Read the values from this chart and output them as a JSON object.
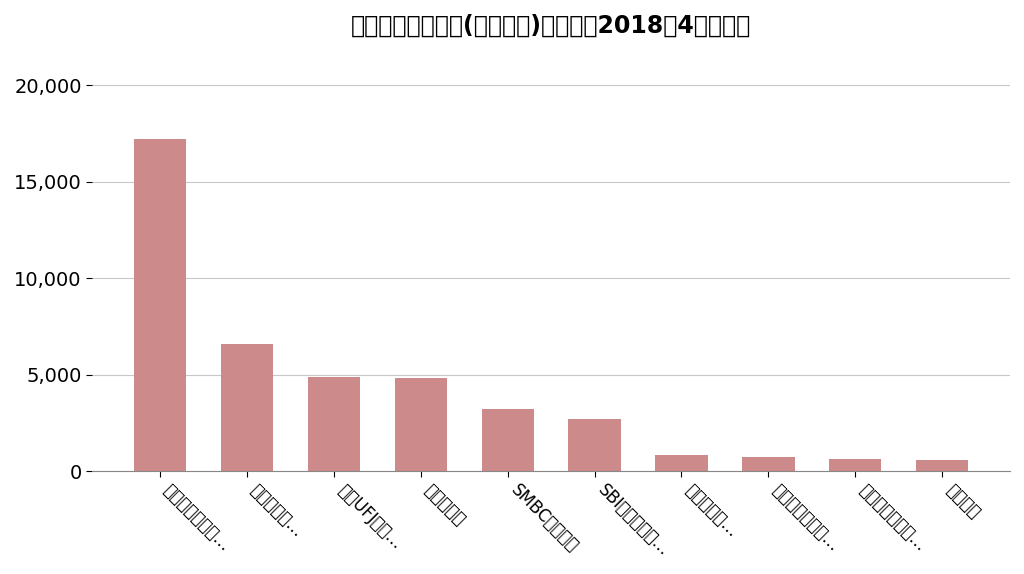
{
  "title": "証券会社の売上高(営業収益)（億円：2018年4月調べ）",
  "categories": [
    "野村ホールディ…",
    "大和証券グ…",
    "三菱UFJ証券…",
    "みずほ証券",
    "SMBC日興証券",
    "SBIホールディ…",
    "岡三証券グ…",
    "東海東京フィナ…",
    "澤田ホールディ…",
    "楽天証券"
  ],
  "values": [
    17200,
    6600,
    4900,
    4800,
    3200,
    2700,
    850,
    750,
    600,
    580
  ],
  "bar_color": "#cd8a8a",
  "ylim": [
    0,
    22000
  ],
  "yticks": [
    0,
    5000,
    10000,
    15000,
    20000
  ],
  "background_color": "#ffffff",
  "grid_color": "#c8c8c8",
  "title_fontsize": 17,
  "tick_fontsize": 14,
  "xtick_fontsize": 12
}
